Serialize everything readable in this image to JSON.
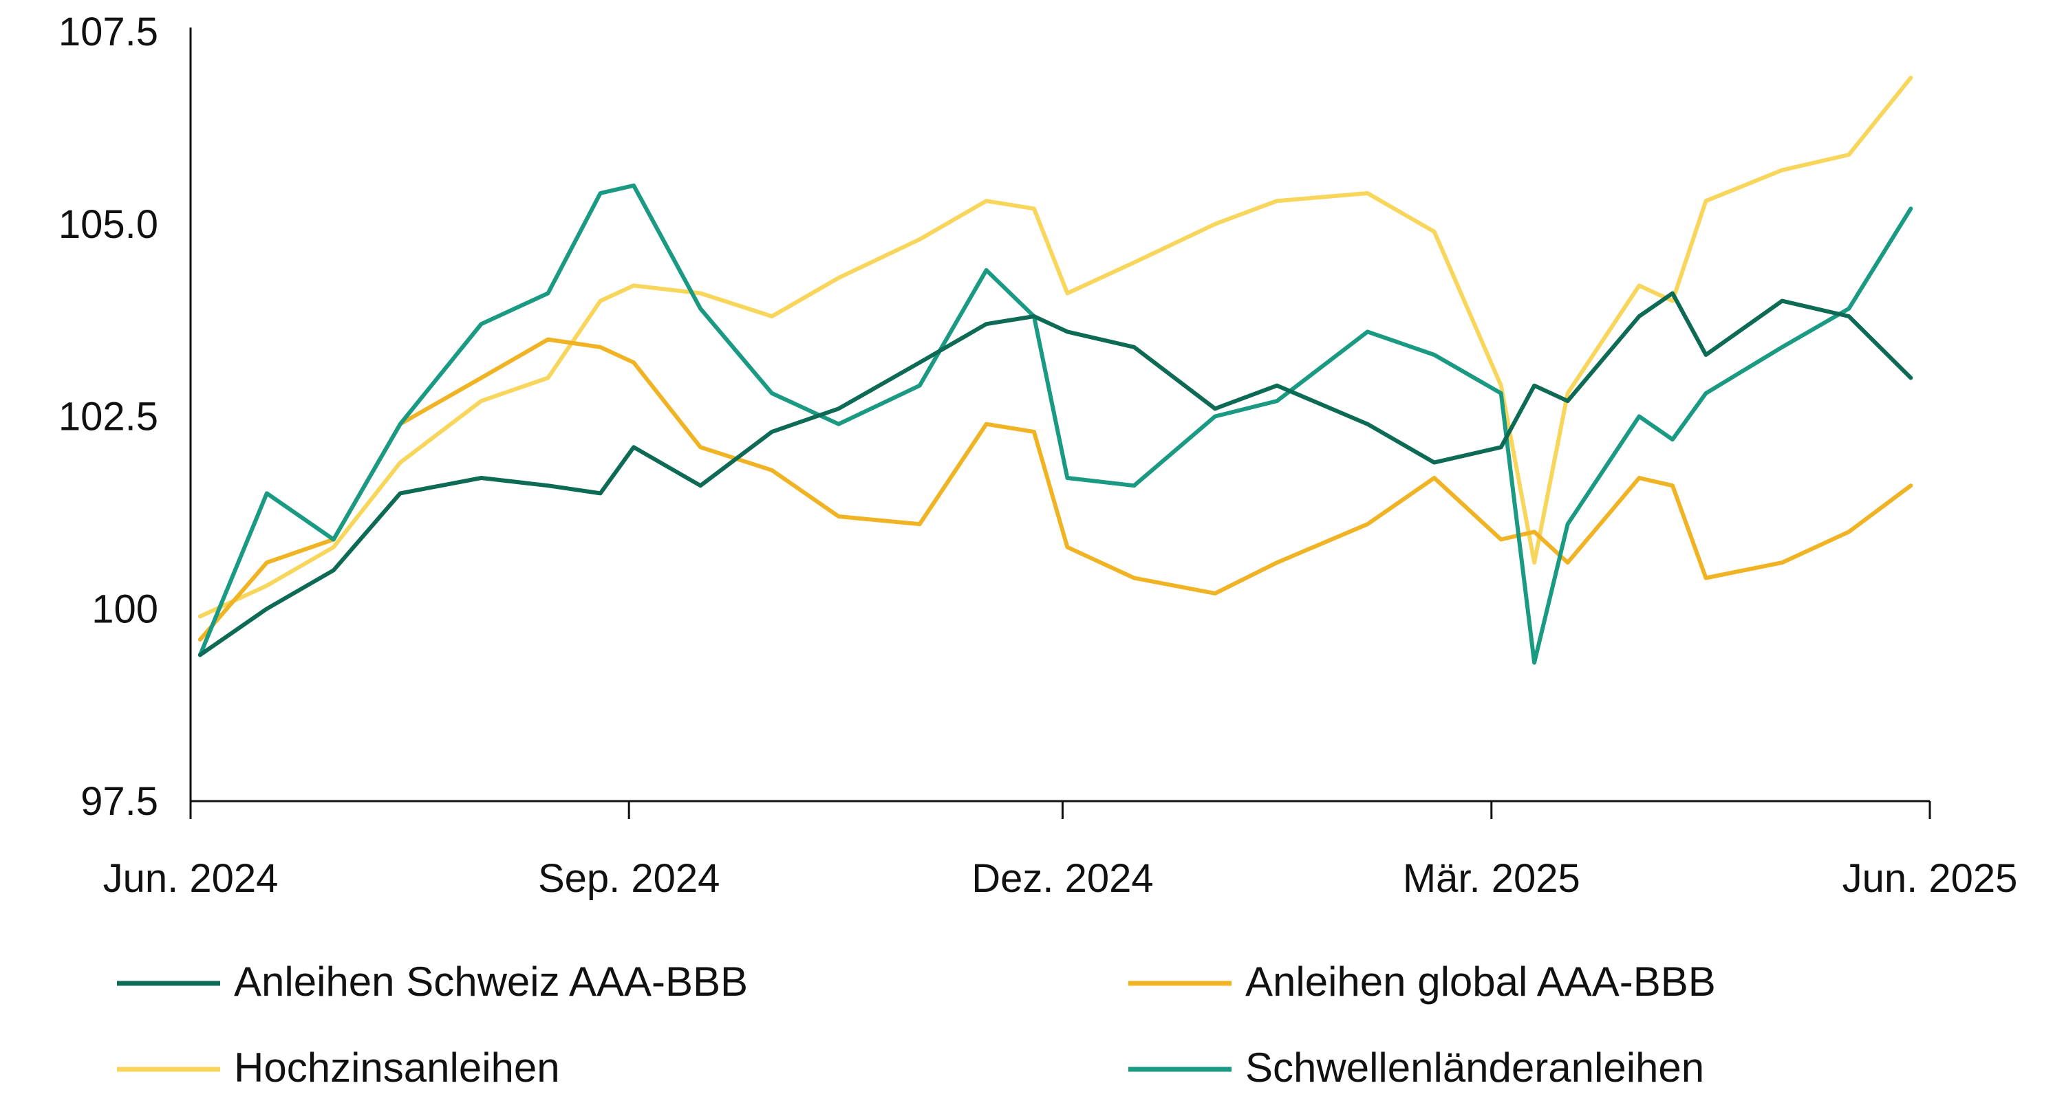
{
  "chart_data": {
    "type": "line",
    "title": "",
    "xlabel": "",
    "ylabel": "",
    "ylim": [
      97.5,
      107.5
    ],
    "y_ticks": [
      "107.5",
      "105.0",
      "102.5",
      "100",
      "97.5"
    ],
    "y_tick_values": [
      107.5,
      105.0,
      102.5,
      100,
      97.5
    ],
    "x_tick_labels": [
      "Jun. 2024",
      "Sep. 2024",
      "Dez. 2024",
      "Mär. 2025",
      "Jun. 2025"
    ],
    "x_tick_dates": [
      "2024-06-01",
      "2024-09-01",
      "2024-12-01",
      "2025-03-01",
      "2025-06-01"
    ],
    "xlim": [
      "2024-06-01",
      "2025-06-01"
    ],
    "grid": false,
    "legend_position": "bottom",
    "x": [
      "2024-06-03",
      "2024-06-17",
      "2024-07-01",
      "2024-07-15",
      "2024-08-01",
      "2024-08-15",
      "2024-08-26",
      "2024-09-02",
      "2024-09-16",
      "2024-10-01",
      "2024-10-15",
      "2024-11-01",
      "2024-11-15",
      "2024-11-25",
      "2024-12-02",
      "2024-12-16",
      "2025-01-02",
      "2025-01-15",
      "2025-02-03",
      "2025-02-17",
      "2025-03-03",
      "2025-03-10",
      "2025-03-17",
      "2025-04-01",
      "2025-04-08",
      "2025-04-15",
      "2025-05-01",
      "2025-05-15",
      "2025-05-28"
    ],
    "series": [
      {
        "name": "Anleihen Schweiz AAA-BBB",
        "color": "#0d6b55",
        "values": [
          99.4,
          100.0,
          100.5,
          101.5,
          101.7,
          101.6,
          101.5,
          102.1,
          101.6,
          102.3,
          102.6,
          103.2,
          103.7,
          103.8,
          103.6,
          103.4,
          102.6,
          102.9,
          102.4,
          101.9,
          102.1,
          102.9,
          102.7,
          103.8,
          104.1,
          103.3,
          104.0,
          103.8,
          103.0
        ]
      },
      {
        "name": "Anleihen global AAA-BBB",
        "color": "#f0b323",
        "values": [
          99.6,
          100.6,
          100.9,
          102.4,
          103.0,
          103.5,
          103.4,
          103.2,
          102.1,
          101.8,
          101.2,
          101.1,
          102.4,
          102.3,
          100.8,
          100.4,
          100.2,
          100.6,
          101.1,
          101.7,
          100.9,
          101.0,
          100.6,
          101.7,
          101.6,
          100.4,
          100.6,
          101.0,
          101.6
        ]
      },
      {
        "name": "Hochzinsanleihen",
        "color": "#f8d65c",
        "values": [
          99.9,
          100.3,
          100.8,
          101.9,
          102.7,
          103.0,
          104.0,
          104.2,
          104.1,
          103.8,
          104.3,
          104.8,
          105.3,
          105.2,
          104.1,
          104.5,
          105.0,
          105.3,
          105.4,
          104.9,
          102.9,
          100.6,
          102.8,
          104.2,
          104.0,
          105.3,
          105.7,
          105.9,
          106.9
        ]
      },
      {
        "name": "Schwellenländeranleihen",
        "color": "#1a9a82",
        "values": [
          99.4,
          101.5,
          100.9,
          102.4,
          103.7,
          104.1,
          105.4,
          105.5,
          103.9,
          102.8,
          102.4,
          102.9,
          104.4,
          103.8,
          101.7,
          101.6,
          102.5,
          102.7,
          103.6,
          103.3,
          102.8,
          99.3,
          101.1,
          102.5,
          102.2,
          102.8,
          103.4,
          103.9,
          105.2
        ]
      }
    ]
  }
}
